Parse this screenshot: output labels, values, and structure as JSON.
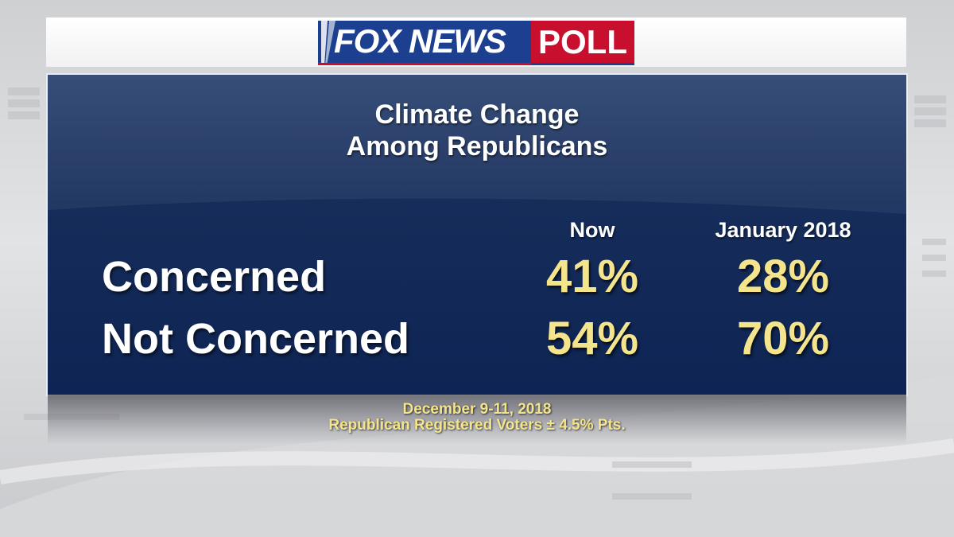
{
  "brand": {
    "logo_fox": "FOX NEWS",
    "logo_poll": "POLL",
    "logo_colors": {
      "blue": "#1d3f8f",
      "red": "#c8102e"
    }
  },
  "chart_data": {
    "type": "table",
    "title_line1": "Climate Change",
    "title_line2": "Among Republicans",
    "columns": [
      "Now",
      "January 2018"
    ],
    "rows": [
      {
        "label": "Concerned",
        "values": [
          "41%",
          "28%"
        ]
      },
      {
        "label": "Not Concerned",
        "values": [
          "54%",
          "70%"
        ]
      }
    ],
    "value_color": "#f4e48c",
    "panel_color": "#162d5a"
  },
  "footer": {
    "line1": "December 9-11, 2018",
    "line2": "Republican Registered Voters ± 4.5% Pts."
  }
}
